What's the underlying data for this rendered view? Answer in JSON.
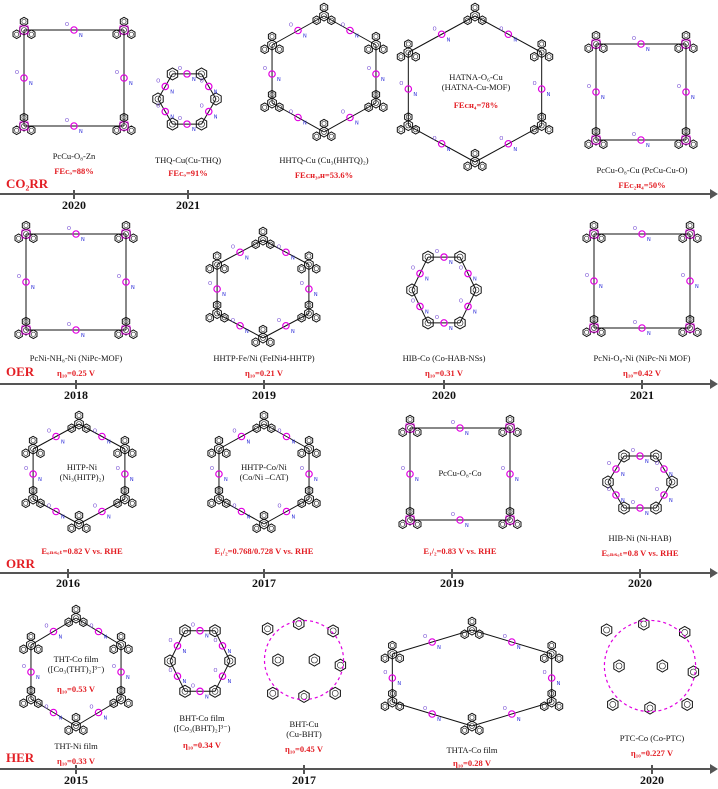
{
  "rows": [
    {
      "category": "CO₂RR",
      "years": [
        "2020",
        "2021"
      ],
      "items": [
        {
          "name": "PcCu-O₈-Zn",
          "value": "FEᴄₒ=88%"
        },
        {
          "name": "THQ-Cu(Cu-THQ)",
          "value": "FEᴄₒ=91%"
        },
        {
          "name": "HHTQ-Cu (Cu₃(HHTQ)₂)",
          "value": "FEᴄʜ₃ₒʜ=53.6%"
        },
        {
          "name": "HATNA-O₆-Cu\n(HATNA-Cu-MOF)",
          "value": "FEᴄʜ₄=78%"
        },
        {
          "name": "PcCu-O₈-Cu (PcCu-Cu-O)",
          "value": "FEᴄ₂ʜ₄=50%"
        }
      ]
    },
    {
      "category": "OER",
      "years": [
        "2018",
        "2019",
        "2020",
        "2021"
      ],
      "items": [
        {
          "name": "PcNi-NH₈-Ni (NiPc-MOF)",
          "value": "η₁₀=0.25 V"
        },
        {
          "name": "HHTP-Fe/Ni (FeINi4-HHTP)",
          "value": "η₁₀=0.21 V"
        },
        {
          "name": "HIB-Co (Co-HAB-NSs)",
          "value": "η₁₀=0.31 V"
        },
        {
          "name": "PcNi-O₈-Ni (NiPc-Ni MOF)",
          "value": "η₁₀=0.42 V"
        }
      ]
    },
    {
      "category": "ORR",
      "years": [
        "2016",
        "2017",
        "2019",
        "2020"
      ],
      "items": [
        {
          "name": "HITP-Ni\n(Ni₃(HITP)₂)",
          "value": "Eₒₙₛₑₜ=0.82 V vs. RHE"
        },
        {
          "name": "HHTP-Co/Ni\n(Co/Ni –CAT)",
          "value": "E₁/₂=0.768/0.728 V vs. RHE"
        },
        {
          "name": "PcCu-O₈-Co",
          "value": "E₁/₂=0.83 V vs. RHE"
        },
        {
          "name": "HIB-Ni (Ni-HAB)",
          "value": "Eₒₙₛₑₜ=0.8 V vs. RHE"
        }
      ]
    },
    {
      "category": "HER",
      "years": [
        "2015",
        "2017",
        "2020"
      ],
      "items": [
        {
          "name": "THT-Co film\n([Co₃(THT)₂]³⁻)",
          "value": "η₁₀=0.53 V"
        },
        {
          "name": "THT-Ni film",
          "value": "η₁₀=0.33 V"
        },
        {
          "name": "BHT-Co film\n([Co₃(BHT)₂]³⁻)",
          "value": "η₁₀=0.34 V"
        },
        {
          "name": "BHT-Cu\n(Cu-BHT)",
          "value": "η₁₀=0.45 V"
        },
        {
          "name": "THTA-Co film",
          "value": "η₁₀=0.28 V"
        },
        {
          "name": "PTC-Co (Co-PTC)",
          "value": "η₁₀=0.227 V"
        }
      ]
    }
  ],
  "colors": {
    "category": "#e31e24",
    "value": "#e31e24",
    "metal": "#e100e1",
    "nitrogen": "#1f1fd6",
    "oxygen": "#6b3fd0",
    "line": "#555555"
  }
}
